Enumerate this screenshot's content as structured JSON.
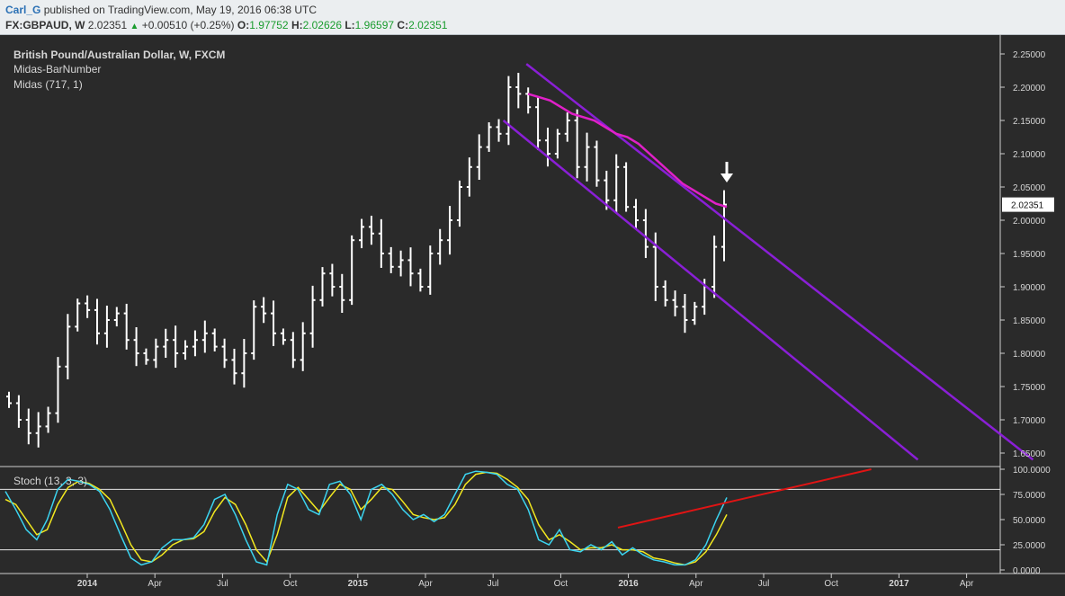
{
  "header": {
    "author": "Carl_G",
    "published_text": "published on TradingView.com, May 19, 2016 06:38 UTC",
    "symbol": "FX:GBPAUD, W",
    "last": "2.02351",
    "change": "+0.00510 (+0.25%)",
    "open_label": "O:",
    "open": "1.97752",
    "high_label": "H:",
    "high": "2.02626",
    "low_label": "L:",
    "low": "1.96597",
    "close_label": "C:",
    "close": "2.02351"
  },
  "legend": {
    "instrument": "British Pound/Australian Dollar, W, FXCM",
    "indicator1": "Midas-BarNumber",
    "indicator2": "Midas (717, 1)",
    "stoch": "Stoch (13, 3, 3)"
  },
  "colors": {
    "background": "#2a2a2a",
    "bars": "#ffffff",
    "midas": "#e020c8",
    "channel": "#8a1fd6",
    "stoch_k": "#3bd4f0",
    "stoch_d": "#f2e81f",
    "divergence": "#e01414",
    "last_price_bg": "#ffffff"
  },
  "price_axis": {
    "ticks": [
      "2.25000",
      "2.20000",
      "2.15000",
      "2.10000",
      "2.05000",
      "2.00000",
      "1.95000",
      "1.90000",
      "1.85000",
      "1.80000",
      "1.75000",
      "1.70000",
      "1.65000"
    ],
    "last_label": "2.02351"
  },
  "stoch_axis": {
    "ticks": [
      "100.0000",
      "75.0000",
      "50.0000",
      "25.0000",
      "0.0000"
    ]
  },
  "time_axis": {
    "labels": [
      "2014",
      "Apr",
      "Jul",
      "Oct",
      "2015",
      "Apr",
      "Jul",
      "Oct",
      "2016",
      "Apr",
      "Jul",
      "Oct",
      "2017",
      "Apr"
    ]
  },
  "chart_data": [
    {
      "type": "bar",
      "title": "British Pound/Australian Dollar, W, FXCM",
      "series": [
        {
          "name": "GBPAUD weekly close",
          "values": [
            1.725,
            1.7,
            1.68,
            1.69,
            1.71,
            1.78,
            1.84,
            1.875,
            1.865,
            1.83,
            1.85,
            1.86,
            1.82,
            1.8,
            1.79,
            1.81,
            1.82,
            1.8,
            1.81,
            1.82,
            1.83,
            1.81,
            1.79,
            1.77,
            1.8,
            1.87,
            1.86,
            1.83,
            1.82,
            1.79,
            1.83,
            1.88,
            1.92,
            1.9,
            1.88,
            1.97,
            1.99,
            1.98,
            1.95,
            1.93,
            1.94,
            1.92,
            1.9,
            1.95,
            1.97,
            2.0,
            2.05,
            2.08,
            2.11,
            2.14,
            2.13,
            2.2,
            2.19,
            2.17,
            2.12,
            2.1,
            2.13,
            2.15,
            2.08,
            2.11,
            2.06,
            2.03,
            2.08,
            2.02,
            2.0,
            1.96,
            1.9,
            1.88,
            1.87,
            1.85,
            1.87,
            1.9,
            1.96,
            2.02351
          ]
        }
      ],
      "midas": {
        "name": "Midas (717, 1)",
        "values": [
          2.19,
          2.185,
          2.18,
          2.17,
          2.16,
          2.155,
          2.15,
          2.14,
          2.13,
          2.125,
          2.115,
          2.1,
          2.085,
          2.07,
          2.055,
          2.045,
          2.035,
          2.025,
          2.02
        ]
      },
      "channel": {
        "upper": [
          {
            "date": "2015-08",
            "value": 2.235
          },
          {
            "date": "2017-06",
            "value": 1.64
          }
        ],
        "lower": [
          {
            "date": "2015-07",
            "value": 2.15
          },
          {
            "date": "2017-01",
            "value": 1.64
          }
        ]
      },
      "ylim": [
        1.64,
        2.26
      ]
    },
    {
      "type": "line",
      "title": "Stoch (13, 3, 3)",
      "series": [
        {
          "name": "%K",
          "values": [
            78,
            60,
            40,
            30,
            50,
            80,
            90,
            88,
            85,
            78,
            60,
            35,
            12,
            5,
            8,
            22,
            30,
            30,
            32,
            45,
            70,
            75,
            55,
            30,
            8,
            5,
            55,
            85,
            80,
            60,
            55,
            85,
            88,
            75,
            50,
            80,
            85,
            75,
            60,
            50,
            55,
            48,
            55,
            75,
            95,
            98,
            97,
            95,
            85,
            80,
            60,
            30,
            25,
            40,
            20,
            18,
            25,
            20,
            28,
            15,
            22,
            15,
            10,
            8,
            5,
            5,
            10,
            25,
            50,
            72
          ]
        },
        {
          "name": "%D",
          "values": [
            70,
            65,
            50,
            35,
            40,
            65,
            82,
            88,
            86,
            80,
            70,
            48,
            25,
            10,
            8,
            15,
            25,
            30,
            31,
            38,
            58,
            72,
            65,
            45,
            20,
            8,
            35,
            72,
            82,
            70,
            58,
            72,
            85,
            80,
            60,
            70,
            82,
            80,
            68,
            55,
            52,
            50,
            52,
            65,
            85,
            95,
            97,
            96,
            90,
            82,
            70,
            45,
            30,
            35,
            28,
            20,
            22,
            22,
            25,
            20,
            20,
            18,
            12,
            10,
            7,
            5,
            8,
            18,
            35,
            55
          ]
        }
      ],
      "divergence": [
        {
          "date": "2015-11",
          "value": 42
        },
        {
          "date": "2016-10",
          "value": 100
        }
      ],
      "ylim": [
        0,
        100
      ]
    }
  ]
}
